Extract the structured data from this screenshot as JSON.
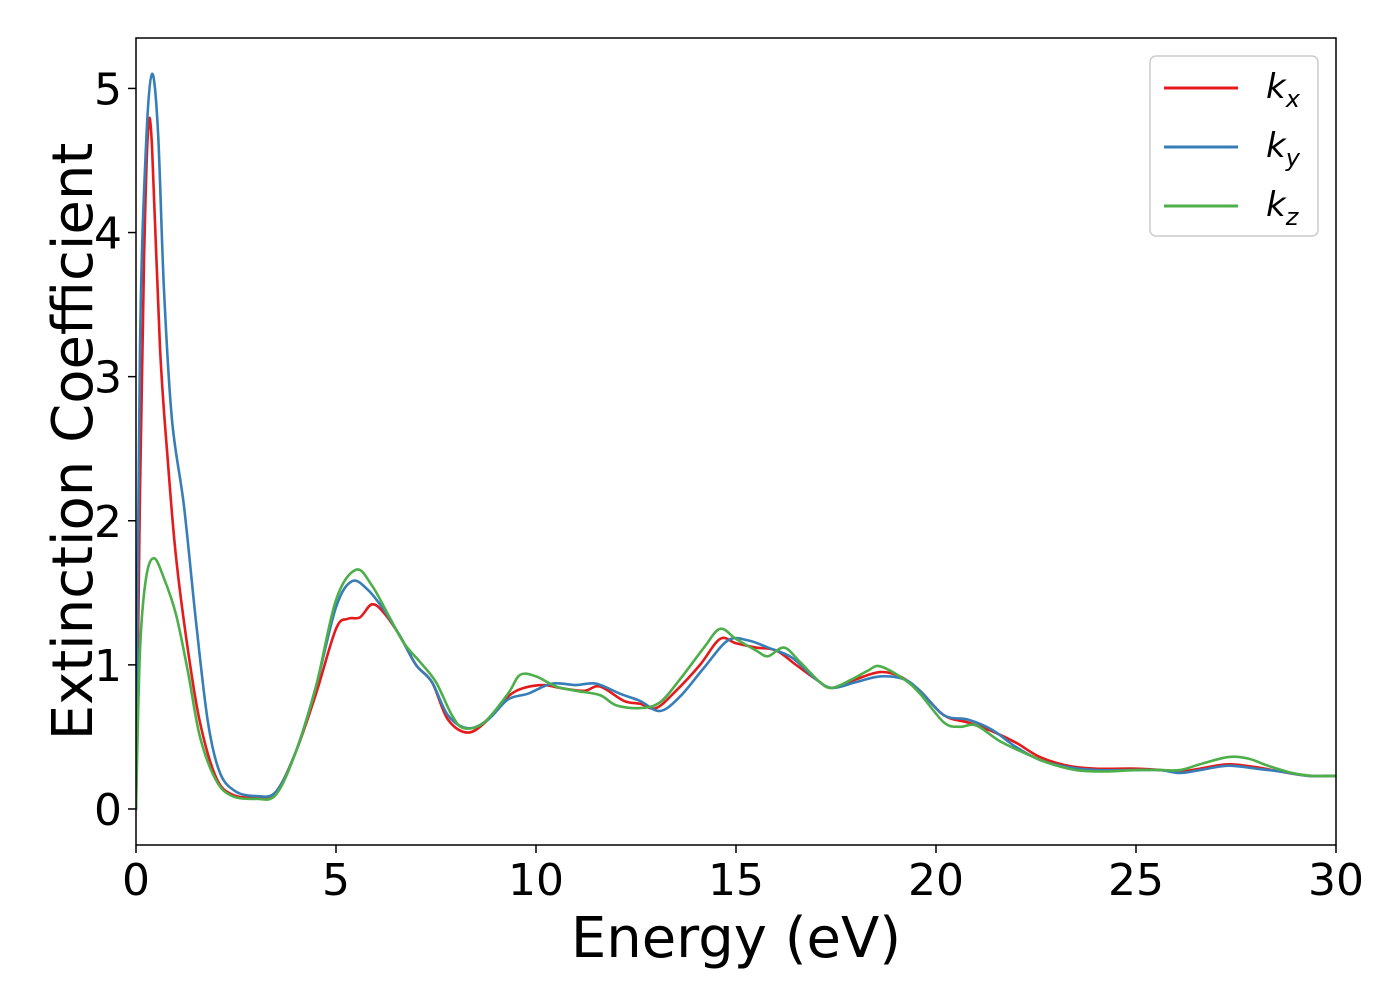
{
  "chart_data": {
    "type": "line",
    "title": "",
    "xlabel": "Energy (eV)",
    "ylabel": "Extinction Coefficient",
    "xlim": [
      0,
      30
    ],
    "ylim": [
      -0.25,
      5.35
    ],
    "xticks": [
      0,
      5,
      10,
      15,
      20,
      25,
      30
    ],
    "yticks": [
      0,
      1,
      2,
      3,
      4,
      5
    ],
    "grid": false,
    "legend_position": "top-right",
    "series": [
      {
        "name": "k_x",
        "legend_main": "k",
        "legend_sub": "x",
        "color": "#e41a1c",
        "points": [
          [
            0,
            0
          ],
          [
            0.1,
            2.2
          ],
          [
            0.2,
            3.8
          ],
          [
            0.3,
            4.7
          ],
          [
            0.4,
            4.6
          ],
          [
            0.6,
            3.2
          ],
          [
            0.8,
            2.4
          ],
          [
            1.0,
            1.75
          ],
          [
            1.3,
            1.1
          ],
          [
            1.6,
            0.6
          ],
          [
            2.0,
            0.22
          ],
          [
            2.4,
            0.1
          ],
          [
            3.0,
            0.08
          ],
          [
            3.5,
            0.12
          ],
          [
            4.0,
            0.4
          ],
          [
            4.5,
            0.8
          ],
          [
            5.0,
            1.25
          ],
          [
            5.3,
            1.32
          ],
          [
            5.6,
            1.33
          ],
          [
            5.9,
            1.42
          ],
          [
            6.2,
            1.36
          ],
          [
            6.6,
            1.2
          ],
          [
            7.0,
            1.0
          ],
          [
            7.4,
            0.88
          ],
          [
            7.8,
            0.62
          ],
          [
            8.3,
            0.53
          ],
          [
            8.8,
            0.62
          ],
          [
            9.3,
            0.78
          ],
          [
            9.7,
            0.84
          ],
          [
            10.2,
            0.86
          ],
          [
            10.6,
            0.84
          ],
          [
            11.2,
            0.82
          ],
          [
            11.6,
            0.85
          ],
          [
            12.2,
            0.75
          ],
          [
            12.6,
            0.73
          ],
          [
            13.0,
            0.7
          ],
          [
            13.5,
            0.82
          ],
          [
            14.1,
            1.0
          ],
          [
            14.6,
            1.18
          ],
          [
            15.0,
            1.15
          ],
          [
            15.5,
            1.12
          ],
          [
            16.0,
            1.1
          ],
          [
            16.5,
            1.0
          ],
          [
            17.0,
            0.9
          ],
          [
            17.4,
            0.84
          ],
          [
            18.0,
            0.9
          ],
          [
            18.6,
            0.95
          ],
          [
            19.1,
            0.92
          ],
          [
            19.6,
            0.82
          ],
          [
            20.2,
            0.65
          ],
          [
            20.8,
            0.6
          ],
          [
            21.4,
            0.54
          ],
          [
            22.0,
            0.46
          ],
          [
            22.6,
            0.36
          ],
          [
            23.3,
            0.3
          ],
          [
            24.0,
            0.28
          ],
          [
            25.0,
            0.28
          ],
          [
            25.6,
            0.27
          ],
          [
            26.1,
            0.26
          ],
          [
            26.6,
            0.28
          ],
          [
            27.3,
            0.31
          ],
          [
            28.0,
            0.29
          ],
          [
            28.6,
            0.26
          ],
          [
            29.3,
            0.23
          ],
          [
            30.0,
            0.23
          ]
        ]
      },
      {
        "name": "k_y",
        "legend_main": "k",
        "legend_sub": "y",
        "color": "#377eb8",
        "points": [
          [
            0,
            0
          ],
          [
            0.1,
            3.2
          ],
          [
            0.25,
            4.6
          ],
          [
            0.4,
            5.1
          ],
          [
            0.55,
            4.7
          ],
          [
            0.7,
            3.6
          ],
          [
            0.9,
            2.7
          ],
          [
            1.2,
            2.1
          ],
          [
            1.5,
            1.3
          ],
          [
            1.8,
            0.6
          ],
          [
            2.1,
            0.25
          ],
          [
            2.5,
            0.12
          ],
          [
            3.0,
            0.09
          ],
          [
            3.5,
            0.12
          ],
          [
            4.0,
            0.4
          ],
          [
            4.5,
            0.85
          ],
          [
            5.0,
            1.4
          ],
          [
            5.4,
            1.58
          ],
          [
            5.8,
            1.52
          ],
          [
            6.2,
            1.38
          ],
          [
            6.6,
            1.2
          ],
          [
            7.0,
            1.0
          ],
          [
            7.4,
            0.88
          ],
          [
            7.8,
            0.65
          ],
          [
            8.3,
            0.56
          ],
          [
            8.8,
            0.62
          ],
          [
            9.3,
            0.76
          ],
          [
            9.8,
            0.8
          ],
          [
            10.4,
            0.87
          ],
          [
            11.0,
            0.86
          ],
          [
            11.5,
            0.87
          ],
          [
            12.1,
            0.8
          ],
          [
            12.6,
            0.75
          ],
          [
            13.1,
            0.68
          ],
          [
            13.6,
            0.78
          ],
          [
            14.2,
            0.98
          ],
          [
            14.8,
            1.17
          ],
          [
            15.3,
            1.17
          ],
          [
            15.8,
            1.12
          ],
          [
            16.4,
            1.05
          ],
          [
            17.0,
            0.9
          ],
          [
            17.4,
            0.84
          ],
          [
            18.0,
            0.88
          ],
          [
            18.6,
            0.92
          ],
          [
            19.2,
            0.9
          ],
          [
            19.6,
            0.82
          ],
          [
            20.2,
            0.65
          ],
          [
            20.8,
            0.62
          ],
          [
            21.4,
            0.55
          ],
          [
            22.0,
            0.43
          ],
          [
            22.6,
            0.34
          ],
          [
            23.3,
            0.29
          ],
          [
            24.0,
            0.27
          ],
          [
            25.0,
            0.27
          ],
          [
            25.6,
            0.27
          ],
          [
            26.1,
            0.25
          ],
          [
            26.6,
            0.27
          ],
          [
            27.3,
            0.3
          ],
          [
            28.0,
            0.28
          ],
          [
            28.6,
            0.26
          ],
          [
            29.3,
            0.23
          ],
          [
            30.0,
            0.23
          ]
        ]
      },
      {
        "name": "k_z",
        "legend_main": "k",
        "legend_sub": "z",
        "color": "#4daf4a",
        "points": [
          [
            0,
            0
          ],
          [
            0.1,
            1.1
          ],
          [
            0.25,
            1.6
          ],
          [
            0.45,
            1.74
          ],
          [
            0.7,
            1.6
          ],
          [
            1.0,
            1.35
          ],
          [
            1.3,
            0.95
          ],
          [
            1.6,
            0.5
          ],
          [
            2.0,
            0.2
          ],
          [
            2.4,
            0.09
          ],
          [
            3.0,
            0.07
          ],
          [
            3.5,
            0.1
          ],
          [
            4.0,
            0.4
          ],
          [
            4.5,
            0.85
          ],
          [
            5.0,
            1.45
          ],
          [
            5.5,
            1.66
          ],
          [
            5.9,
            1.55
          ],
          [
            6.3,
            1.35
          ],
          [
            6.7,
            1.15
          ],
          [
            7.1,
            1.02
          ],
          [
            7.5,
            0.88
          ],
          [
            7.9,
            0.65
          ],
          [
            8.2,
            0.56
          ],
          [
            8.7,
            0.6
          ],
          [
            9.3,
            0.8
          ],
          [
            9.6,
            0.93
          ],
          [
            10.0,
            0.92
          ],
          [
            10.5,
            0.85
          ],
          [
            11.0,
            0.82
          ],
          [
            11.6,
            0.79
          ],
          [
            12.0,
            0.72
          ],
          [
            12.6,
            0.7
          ],
          [
            13.1,
            0.74
          ],
          [
            13.6,
            0.9
          ],
          [
            14.2,
            1.12
          ],
          [
            14.6,
            1.25
          ],
          [
            15.0,
            1.18
          ],
          [
            15.5,
            1.1
          ],
          [
            15.8,
            1.06
          ],
          [
            16.2,
            1.12
          ],
          [
            16.6,
            1.02
          ],
          [
            17.1,
            0.88
          ],
          [
            17.4,
            0.84
          ],
          [
            17.9,
            0.9
          ],
          [
            18.3,
            0.96
          ],
          [
            18.6,
            0.99
          ],
          [
            19.2,
            0.9
          ],
          [
            19.6,
            0.8
          ],
          [
            20.2,
            0.6
          ],
          [
            20.6,
            0.57
          ],
          [
            21.0,
            0.58
          ],
          [
            21.6,
            0.47
          ],
          [
            22.2,
            0.39
          ],
          [
            22.8,
            0.32
          ],
          [
            23.5,
            0.27
          ],
          [
            24.2,
            0.26
          ],
          [
            25.0,
            0.27
          ],
          [
            25.6,
            0.27
          ],
          [
            26.1,
            0.27
          ],
          [
            26.6,
            0.31
          ],
          [
            27.3,
            0.36
          ],
          [
            27.8,
            0.35
          ],
          [
            28.3,
            0.3
          ],
          [
            28.9,
            0.25
          ],
          [
            29.4,
            0.23
          ],
          [
            30.0,
            0.23
          ]
        ]
      }
    ]
  }
}
